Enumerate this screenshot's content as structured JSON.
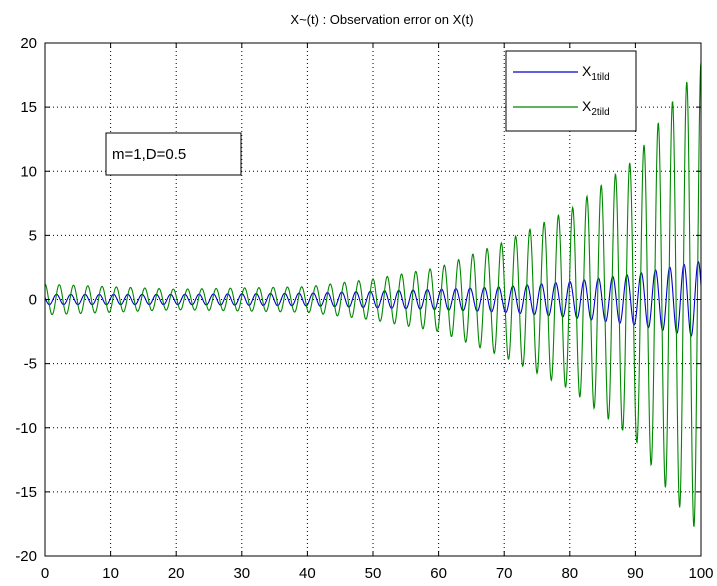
{
  "chart_data": {
    "type": "line",
    "title": "X~(t) : Observation error on X(t)",
    "xlabel": "",
    "ylabel": "",
    "xlim": [
      0,
      100
    ],
    "ylim": [
      -20,
      20
    ],
    "xticks": [
      0,
      10,
      20,
      30,
      40,
      50,
      60,
      70,
      80,
      90,
      100
    ],
    "yticks": [
      -20,
      -15,
      -10,
      -5,
      0,
      5,
      10,
      15,
      20
    ],
    "grid": true,
    "legend_position": "top-right",
    "annotation": "m=1,D=0.5",
    "series": [
      {
        "name": "X1tild",
        "name_main": "X",
        "name_sub": "1tild",
        "color": "#0000cc",
        "model": {
          "kind": "growing-oscillation",
          "amplitude_start": 0.4,
          "amplitude_end": 3.0,
          "cycles": 46,
          "phase": 1.2
        },
        "envelope": [
          [
            0,
            0.4
          ],
          [
            20,
            0.4
          ],
          [
            40,
            0.5
          ],
          [
            60,
            0.8
          ],
          [
            70,
            1.0
          ],
          [
            80,
            1.4
          ],
          [
            90,
            2.0
          ],
          [
            100,
            3.0
          ]
        ]
      },
      {
        "name": "X2tild",
        "name_main": "X",
        "name_sub": "2tild",
        "color": "#008800",
        "model": {
          "kind": "growing-oscillation",
          "amplitude_start": 1.2,
          "amplitude_end": 18.5,
          "cycles": 46,
          "phase": 0.0
        },
        "envelope": [
          [
            0,
            1.2
          ],
          [
            20,
            0.8
          ],
          [
            40,
            1.0
          ],
          [
            50,
            1.6
          ],
          [
            60,
            2.5
          ],
          [
            70,
            4.5
          ],
          [
            80,
            7.0
          ],
          [
            90,
            11.0
          ],
          [
            95,
            15.0
          ],
          [
            100,
            18.5
          ]
        ]
      }
    ]
  }
}
